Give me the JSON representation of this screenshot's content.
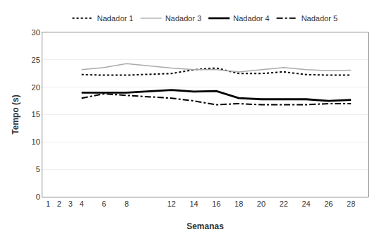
{
  "chart_data": {
    "type": "line",
    "xlabel": "Semanas",
    "ylabel": "Tempo (s)",
    "x": [
      4,
      6,
      8,
      12,
      14,
      16,
      18,
      20,
      22,
      24,
      26,
      28
    ],
    "series": [
      {
        "name": "Nadador 1",
        "color": "#000000",
        "line_style": "dotted",
        "values": [
          22.3,
          22.2,
          22.2,
          22.5,
          23.2,
          23.5,
          22.5,
          22.5,
          22.8,
          22.3,
          22.2,
          22.2
        ]
      },
      {
        "name": "Nadador 3",
        "color": "#aaaaaa",
        "line_style": "solid",
        "values": [
          23.2,
          23.6,
          24.3,
          23.5,
          23.2,
          23.2,
          22.8,
          23.2,
          23.6,
          23.2,
          23.0,
          23.1
        ]
      },
      {
        "name": "Nadador 4",
        "color": "#000000",
        "line_style": "solid",
        "values": [
          19.0,
          19.0,
          19.0,
          19.5,
          19.2,
          19.3,
          18.0,
          17.8,
          17.8,
          17.8,
          17.5,
          17.7
        ]
      },
      {
        "name": "Nadador 5",
        "color": "#000000",
        "line_style": "dashdot",
        "values": [
          18.0,
          18.8,
          18.5,
          18.0,
          17.5,
          16.8,
          17.0,
          16.8,
          16.8,
          16.8,
          17.0,
          17.0
        ]
      }
    ],
    "xlim": [
      0.5,
      29.5
    ],
    "xticks": [
      1,
      2,
      3,
      4,
      6,
      8,
      12,
      14,
      16,
      18,
      20,
      22,
      24,
      26,
      28
    ],
    "ylim": [
      0,
      30
    ],
    "yticks": [
      0,
      5,
      10,
      15,
      20,
      25,
      30
    ],
    "grid": "y",
    "legend": "top"
  }
}
